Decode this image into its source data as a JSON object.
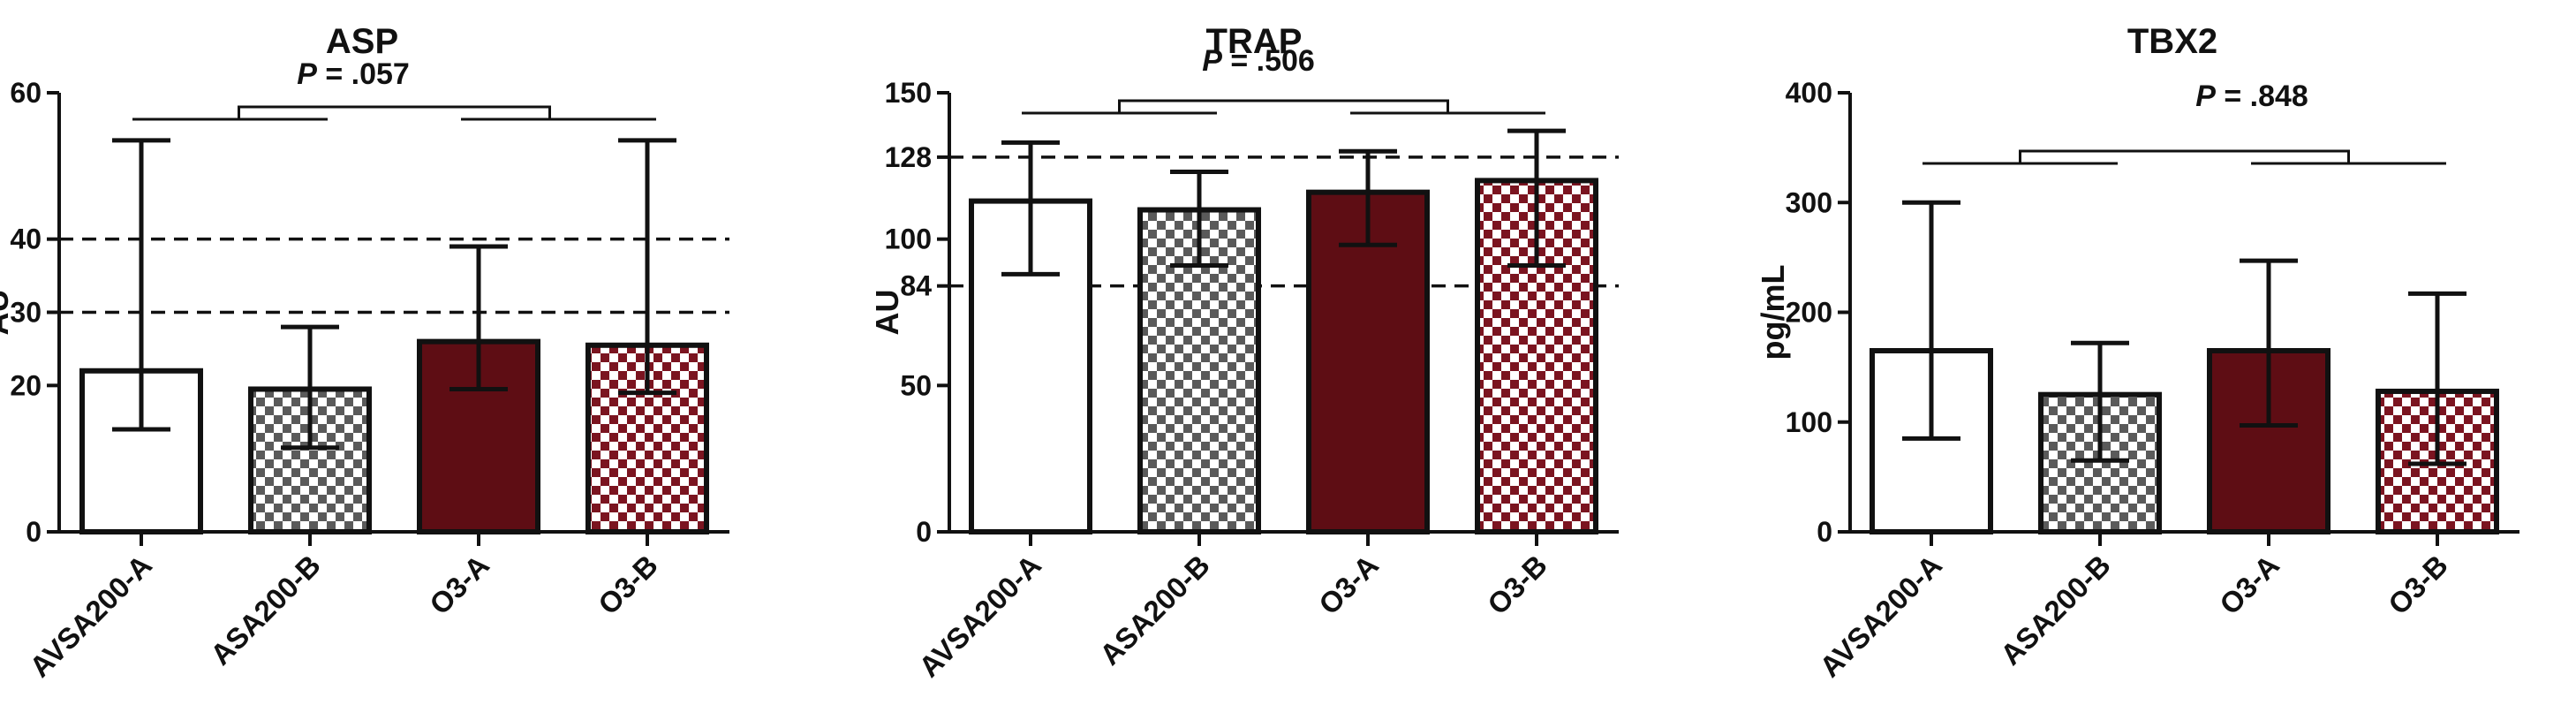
{
  "colors": {
    "white_fill": "#ffffff",
    "maroon": "#5e0d14",
    "gray_check": "#5a5a5a",
    "red_check": "#7b1420",
    "axis": "#111111"
  },
  "chart_data": [
    {
      "type": "bar",
      "title": "ASP",
      "p_label": "P",
      "p_value": "= .057",
      "ylabel": "AU",
      "ylim": [
        0,
        60
      ],
      "yticks": [
        0,
        20,
        30,
        40,
        60
      ],
      "reference_lines": [
        30,
        40
      ],
      "categories": [
        "AVSA200-A",
        "ASA200-B",
        "O3-A",
        "O3-B"
      ],
      "values": [
        22,
        19.5,
        26,
        25.5
      ],
      "err_low": [
        14,
        11.5,
        19.5,
        19
      ],
      "err_high": [
        53.5,
        28,
        39,
        53.5
      ],
      "patterns": [
        "white",
        "gray-check",
        "maroon",
        "red-check"
      ]
    },
    {
      "type": "bar",
      "title": "TRAP",
      "p_label": "P",
      "p_value": "= .506",
      "ylabel": "AU",
      "ylim": [
        0,
        150
      ],
      "yticks": [
        0,
        50,
        84,
        100,
        128,
        150
      ],
      "reference_lines": [
        84,
        128
      ],
      "categories": [
        "AVSA200-A",
        "ASA200-B",
        "O3-A",
        "O3-B"
      ],
      "values": [
        113,
        110,
        116,
        120
      ],
      "err_low": [
        88,
        91,
        98,
        91
      ],
      "err_high": [
        133,
        123,
        130,
        137
      ],
      "patterns": [
        "white",
        "gray-check",
        "maroon",
        "red-check"
      ]
    },
    {
      "type": "bar",
      "title": "TBX2",
      "p_label": "P",
      "p_value": "= .848",
      "ylabel": "pg/mL",
      "ylim": [
        0,
        400
      ],
      "yticks": [
        0,
        100,
        200,
        300,
        400
      ],
      "reference_lines": [],
      "categories": [
        "AVSA200-A",
        "ASA200-B",
        "O3-A",
        "O3-B"
      ],
      "values": [
        165,
        125,
        165,
        128
      ],
      "err_low": [
        85,
        65,
        97,
        62
      ],
      "err_high": [
        300,
        172,
        247,
        217
      ],
      "patterns": [
        "white",
        "gray-check",
        "maroon",
        "red-check"
      ]
    }
  ]
}
